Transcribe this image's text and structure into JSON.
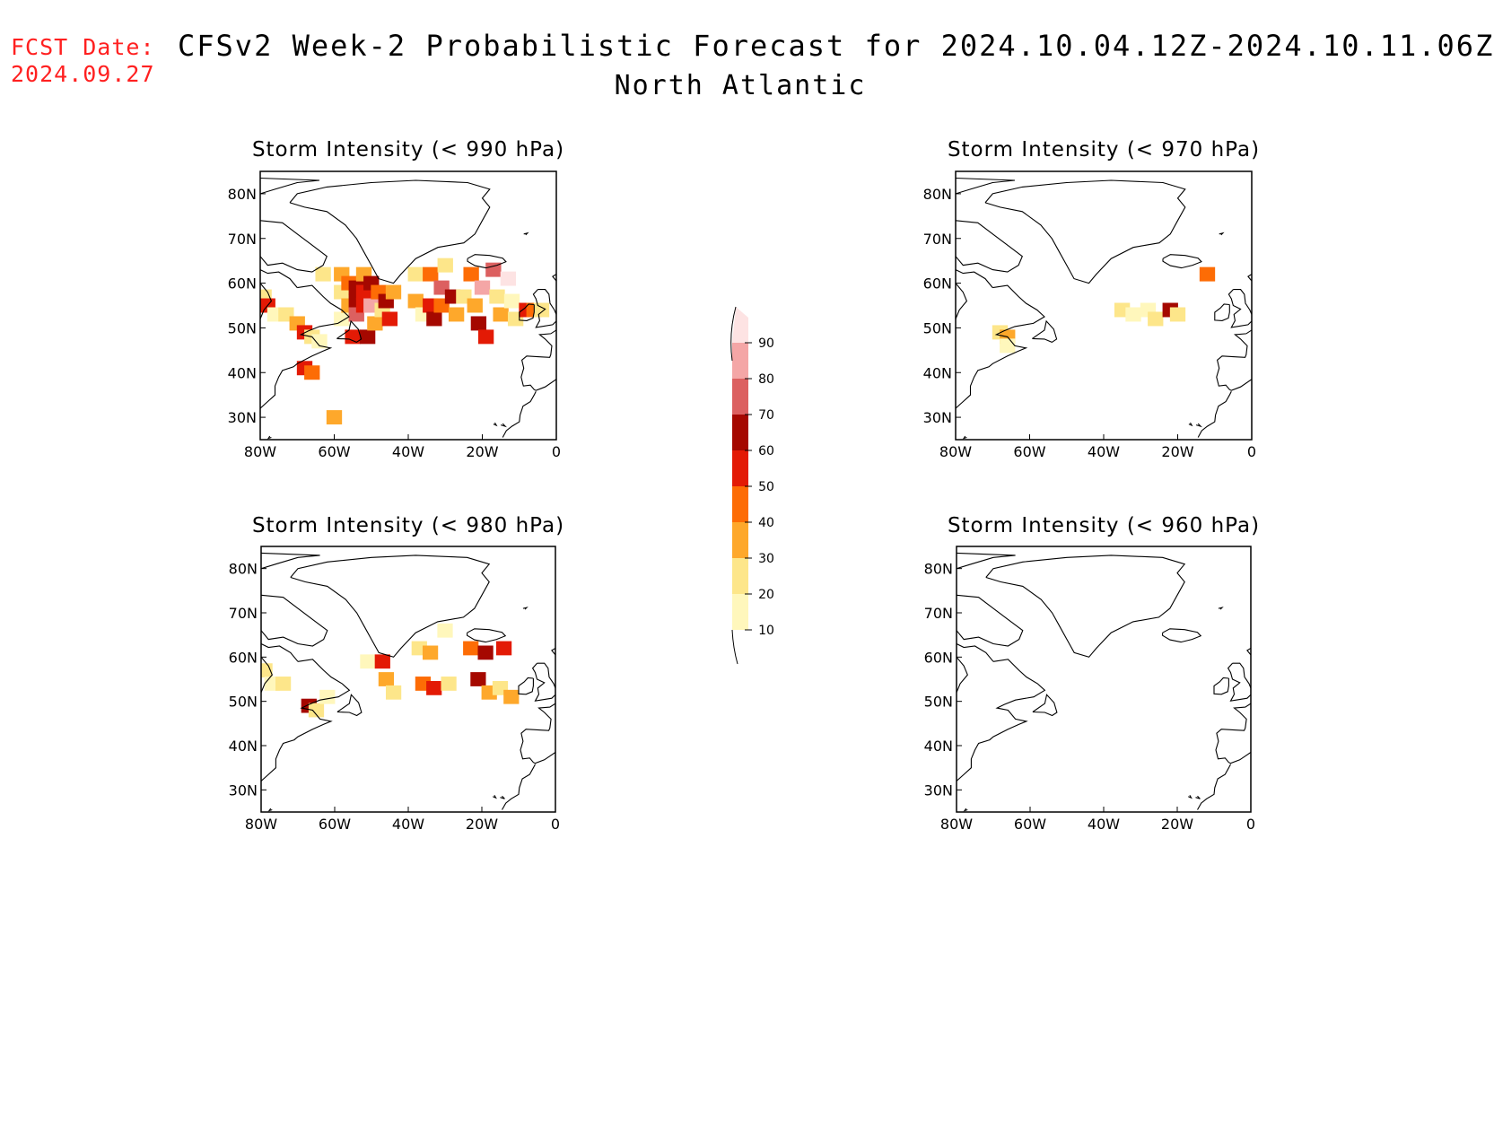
{
  "header": {
    "fcst_label": "FCST Date:",
    "fcst_date": "2024.09.27",
    "title": "CFSv2 Week-2 Probabilistic Forecast for 2024.10.04.12Z-2024.10.11.06Z",
    "region": "North Atlantic"
  },
  "colors": {
    "fcst": "#ff2020",
    "bins": [
      "#fff7bc",
      "#fde68a",
      "#fea82b",
      "#fd6c05",
      "#e31a05",
      "#a50800",
      "#dc6060",
      "#f4a6a6",
      "#fde3e3"
    ]
  },
  "colorbar": {
    "levels": [
      "10",
      "20",
      "30",
      "40",
      "50",
      "60",
      "70",
      "80",
      "90"
    ]
  },
  "axes": {
    "lon_labels": [
      "80W",
      "60W",
      "40W",
      "20W",
      "0"
    ],
    "lat_labels": [
      "80N",
      "70N",
      "60N",
      "50N",
      "40N",
      "30N"
    ],
    "lon_range": [
      -80,
      0
    ],
    "lat_range": [
      25,
      85
    ]
  },
  "panels": [
    {
      "title": "Storm Intensity (< 990 hPa)",
      "cells": [
        {
          "lon": -79,
          "lat": 57,
          "bin": 1
        },
        {
          "lon": -78,
          "lat": 55,
          "bin": 4
        },
        {
          "lon": -76,
          "lat": 53,
          "bin": 0
        },
        {
          "lon": -73,
          "lat": 53,
          "bin": 1
        },
        {
          "lon": -70,
          "lat": 51,
          "bin": 2
        },
        {
          "lon": -68,
          "lat": 49,
          "bin": 4
        },
        {
          "lon": -66,
          "lat": 48,
          "bin": 1
        },
        {
          "lon": -64,
          "lat": 47,
          "bin": 0
        },
        {
          "lon": -68,
          "lat": 41,
          "bin": 4
        },
        {
          "lon": -66,
          "lat": 40,
          "bin": 3
        },
        {
          "lon": -63,
          "lat": 62,
          "bin": 1
        },
        {
          "lon": -60,
          "lat": 30,
          "bin": 2
        },
        {
          "lon": -58,
          "lat": 62,
          "bin": 2
        },
        {
          "lon": -58,
          "lat": 58,
          "bin": 1
        },
        {
          "lon": -58,
          "lat": 52,
          "bin": 0
        },
        {
          "lon": -56,
          "lat": 60,
          "bin": 3
        },
        {
          "lon": -56,
          "lat": 55,
          "bin": 2
        },
        {
          "lon": -55,
          "lat": 48,
          "bin": 4
        },
        {
          "lon": -54,
          "lat": 59,
          "bin": 5
        },
        {
          "lon": -54,
          "lat": 56,
          "bin": 5
        },
        {
          "lon": -54,
          "lat": 53,
          "bin": 6
        },
        {
          "lon": -52,
          "lat": 62,
          "bin": 2
        },
        {
          "lon": -52,
          "lat": 58,
          "bin": 4
        },
        {
          "lon": -52,
          "lat": 55,
          "bin": 4
        },
        {
          "lon": -51,
          "lat": 48,
          "bin": 5
        },
        {
          "lon": -50,
          "lat": 60,
          "bin": 5
        },
        {
          "lon": -50,
          "lat": 55,
          "bin": 7
        },
        {
          "lon": -49,
          "lat": 51,
          "bin": 2
        },
        {
          "lon": -48,
          "lat": 58,
          "bin": 3
        },
        {
          "lon": -47,
          "lat": 54,
          "bin": 1
        },
        {
          "lon": -46,
          "lat": 56,
          "bin": 5
        },
        {
          "lon": -45,
          "lat": 52,
          "bin": 4
        },
        {
          "lon": -44,
          "lat": 58,
          "bin": 2
        },
        {
          "lon": -38,
          "lat": 62,
          "bin": 1
        },
        {
          "lon": -38,
          "lat": 56,
          "bin": 2
        },
        {
          "lon": -36,
          "lat": 53,
          "bin": 0
        },
        {
          "lon": -34,
          "lat": 62,
          "bin": 3
        },
        {
          "lon": -34,
          "lat": 55,
          "bin": 4
        },
        {
          "lon": -33,
          "lat": 52,
          "bin": 5
        },
        {
          "lon": -31,
          "lat": 59,
          "bin": 6
        },
        {
          "lon": -31,
          "lat": 55,
          "bin": 3
        },
        {
          "lon": -30,
          "lat": 64,
          "bin": 1
        },
        {
          "lon": -28,
          "lat": 57,
          "bin": 5
        },
        {
          "lon": -27,
          "lat": 53,
          "bin": 2
        },
        {
          "lon": -25,
          "lat": 57,
          "bin": 1
        },
        {
          "lon": -23,
          "lat": 62,
          "bin": 3
        },
        {
          "lon": -22,
          "lat": 55,
          "bin": 2
        },
        {
          "lon": -21,
          "lat": 51,
          "bin": 5
        },
        {
          "lon": -20,
          "lat": 59,
          "bin": 7
        },
        {
          "lon": -19,
          "lat": 48,
          "bin": 4
        },
        {
          "lon": -17,
          "lat": 63,
          "bin": 6
        },
        {
          "lon": -16,
          "lat": 57,
          "bin": 1
        },
        {
          "lon": -15,
          "lat": 53,
          "bin": 2
        },
        {
          "lon": -13,
          "lat": 61,
          "bin": 8
        },
        {
          "lon": -12,
          "lat": 56,
          "bin": 0
        },
        {
          "lon": -11,
          "lat": 52,
          "bin": 1
        },
        {
          "lon": -8,
          "lat": 54,
          "bin": 4
        },
        {
          "lon": -6,
          "lat": 54,
          "bin": 3
        },
        {
          "lon": -4,
          "lat": 54,
          "bin": 1
        }
      ]
    },
    {
      "title": "Storm Intensity (< 970 hPa)",
      "cells": [
        {
          "lon": -68,
          "lat": 49,
          "bin": 1
        },
        {
          "lon": -66,
          "lat": 48,
          "bin": 2
        },
        {
          "lon": -66,
          "lat": 46,
          "bin": 0
        },
        {
          "lon": -35,
          "lat": 54,
          "bin": 1
        },
        {
          "lon": -32,
          "lat": 53,
          "bin": 0
        },
        {
          "lon": -28,
          "lat": 54,
          "bin": 0
        },
        {
          "lon": -26,
          "lat": 52,
          "bin": 1
        },
        {
          "lon": -22,
          "lat": 54,
          "bin": 5
        },
        {
          "lon": -20,
          "lat": 53,
          "bin": 1
        },
        {
          "lon": -12,
          "lat": 62,
          "bin": 3
        }
      ]
    },
    {
      "title": "Storm Intensity (< 980 hPa)",
      "cells": [
        {
          "lon": -79,
          "lat": 57,
          "bin": 1
        },
        {
          "lon": -77,
          "lat": 54,
          "bin": 0
        },
        {
          "lon": -74,
          "lat": 54,
          "bin": 1
        },
        {
          "lon": -67,
          "lat": 49,
          "bin": 5
        },
        {
          "lon": -65,
          "lat": 48,
          "bin": 1
        },
        {
          "lon": -62,
          "lat": 51,
          "bin": 0
        },
        {
          "lon": -51,
          "lat": 59,
          "bin": 0
        },
        {
          "lon": -47,
          "lat": 59,
          "bin": 4
        },
        {
          "lon": -46,
          "lat": 55,
          "bin": 2
        },
        {
          "lon": -44,
          "lat": 52,
          "bin": 1
        },
        {
          "lon": -37,
          "lat": 62,
          "bin": 1
        },
        {
          "lon": -34,
          "lat": 61,
          "bin": 2
        },
        {
          "lon": -36,
          "lat": 54,
          "bin": 3
        },
        {
          "lon": -33,
          "lat": 53,
          "bin": 4
        },
        {
          "lon": -30,
          "lat": 66,
          "bin": 0
        },
        {
          "lon": -29,
          "lat": 54,
          "bin": 1
        },
        {
          "lon": -23,
          "lat": 62,
          "bin": 3
        },
        {
          "lon": -21,
          "lat": 55,
          "bin": 5
        },
        {
          "lon": -19,
          "lat": 61,
          "bin": 5
        },
        {
          "lon": -18,
          "lat": 52,
          "bin": 2
        },
        {
          "lon": -15,
          "lat": 53,
          "bin": 1
        },
        {
          "lon": -14,
          "lat": 62,
          "bin": 4
        },
        {
          "lon": -12,
          "lat": 51,
          "bin": 2
        }
      ]
    },
    {
      "title": "Storm Intensity (< 960 hPa)",
      "cells": []
    }
  ]
}
